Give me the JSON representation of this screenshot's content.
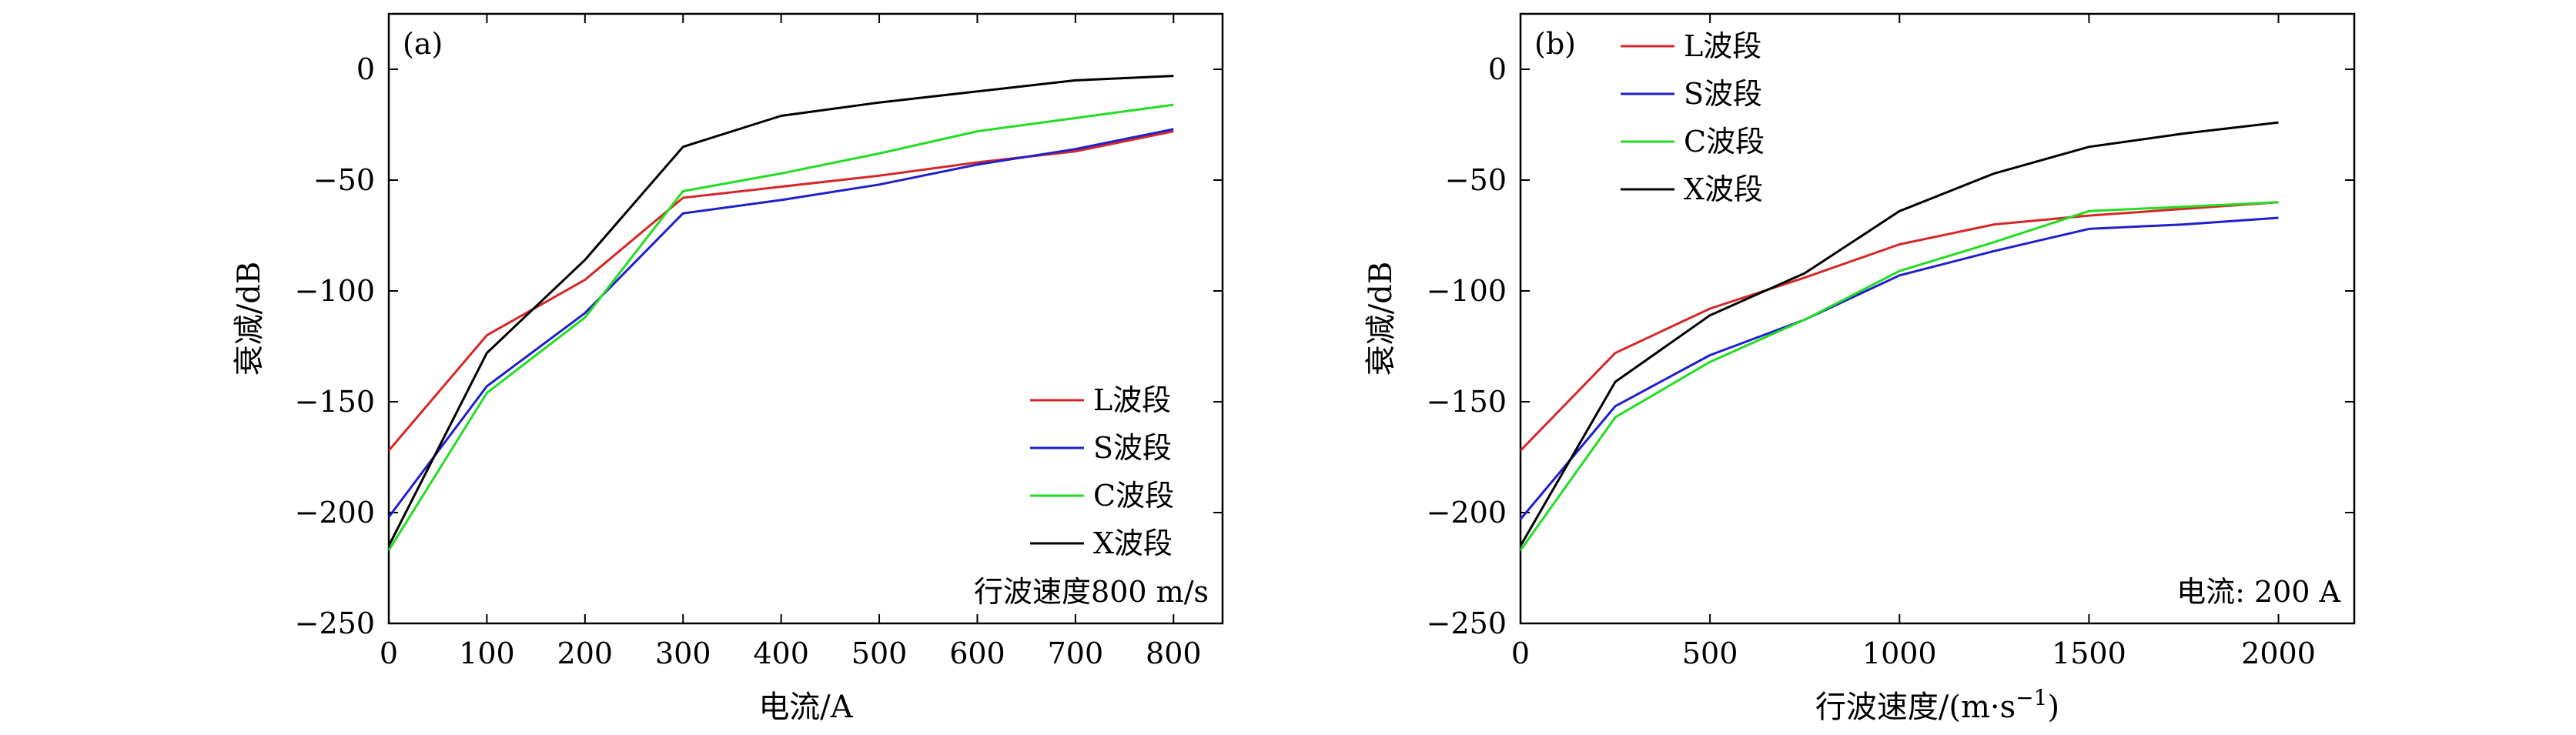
{
  "chart_data": [
    {
      "type": "line",
      "panel_label": "(a)",
      "xlabel": "电流/A",
      "ylabel": "衰减/dB",
      "xlim": [
        0,
        850
      ],
      "ylim": [
        -250,
        25
      ],
      "xticks": [
        0,
        100,
        200,
        300,
        400,
        500,
        600,
        700,
        800
      ],
      "yticks": [
        0,
        -50,
        -100,
        -150,
        -200,
        -250
      ],
      "ytick_labels": [
        "0",
        "−50",
        "−100",
        "−150",
        "−200",
        "−250"
      ],
      "legend_position": "lower-right",
      "annotation": "行波速度800 m/s",
      "series": [
        {
          "name": "L波段",
          "color": "#d62728",
          "x": [
            0,
            100,
            200,
            300,
            400,
            500,
            600,
            700,
            800
          ],
          "y": [
            -172,
            -120,
            -95,
            -58,
            -53,
            -48,
            -42,
            -37,
            -28
          ]
        },
        {
          "name": "S波段",
          "color": "#1f1fcc",
          "x": [
            0,
            100,
            200,
            300,
            400,
            500,
            600,
            700,
            800
          ],
          "y": [
            -202,
            -143,
            -110,
            -65,
            -59,
            -52,
            -43,
            -36,
            -27
          ]
        },
        {
          "name": "C波段",
          "color": "#22dd22",
          "x": [
            0,
            100,
            200,
            300,
            400,
            500,
            600,
            700,
            800
          ],
          "y": [
            -217,
            -146,
            -112,
            -55,
            -47,
            -38,
            -28,
            -22,
            -16
          ]
        },
        {
          "name": "X波段",
          "color": "#000000",
          "x": [
            0,
            100,
            200,
            300,
            400,
            500,
            600,
            700,
            800
          ],
          "y": [
            -215,
            -128,
            -86,
            -35,
            -21,
            -15,
            -10,
            -5,
            -3
          ]
        }
      ]
    },
    {
      "type": "line",
      "panel_label": "(b)",
      "xlabel": "行波速度/(m·s",
      "xlabel_sup": "−1",
      "xlabel_tail": ")",
      "ylabel": "衰减/dB",
      "xlim": [
        0,
        2200
      ],
      "ylim": [
        -250,
        25
      ],
      "xticks": [
        0,
        500,
        1000,
        1500,
        2000
      ],
      "yticks": [
        0,
        -50,
        -100,
        -150,
        -200,
        -250
      ],
      "ytick_labels": [
        "0",
        "−50",
        "−100",
        "−150",
        "−200",
        "−250"
      ],
      "legend_position": "upper-left",
      "annotation": "电流: 200 A",
      "series": [
        {
          "name": "L波段",
          "color": "#d62728",
          "x": [
            0,
            250,
            500,
            750,
            1000,
            1250,
            1500,
            1750,
            2000
          ],
          "y": [
            -172,
            -128,
            -108,
            -94,
            -79,
            -70,
            -66,
            -63,
            -60
          ]
        },
        {
          "name": "S波段",
          "color": "#1f1fcc",
          "x": [
            0,
            250,
            500,
            750,
            1000,
            1250,
            1500,
            1750,
            2000
          ],
          "y": [
            -203,
            -152,
            -129,
            -113,
            -93,
            -82,
            -72,
            -70,
            -67
          ]
        },
        {
          "name": "C波段",
          "color": "#22dd22",
          "x": [
            0,
            250,
            500,
            750,
            1000,
            1250,
            1500,
            1750,
            2000
          ],
          "y": [
            -217,
            -157,
            -132,
            -113,
            -91,
            -78,
            -64,
            -62,
            -60
          ]
        },
        {
          "name": "X波段",
          "color": "#000000",
          "x": [
            0,
            250,
            500,
            750,
            1000,
            1250,
            1500,
            1750,
            2000
          ],
          "y": [
            -215,
            -141,
            -111,
            -92,
            -64,
            -47,
            -35,
            -29,
            -24
          ]
        }
      ]
    }
  ]
}
